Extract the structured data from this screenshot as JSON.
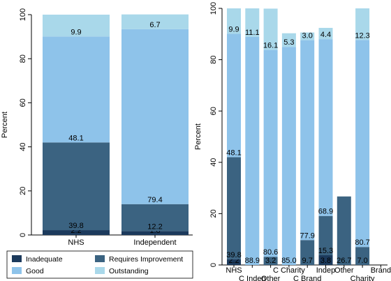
{
  "colors": {
    "inadequate": "#1c3a5c",
    "requires_improvement": "#3b6381",
    "good": "#8ec3ea",
    "outstanding": "#a9d8ea"
  },
  "legend": {
    "items": [
      {
        "key": "inadequate",
        "label": "Inadequate"
      },
      {
        "key": "requires_improvement",
        "label": "Requires Improvement"
      },
      {
        "key": "good",
        "label": "Good"
      },
      {
        "key": "outstanding",
        "label": "Outstanding"
      }
    ]
  },
  "chart_data": [
    {
      "type": "bar",
      "stacked": true,
      "ylabel": "Percent",
      "ylim": [
        0,
        100
      ],
      "yticks": [
        "0",
        "20",
        "40",
        "60",
        "80",
        "100"
      ],
      "categories": [
        "NHS",
        "Independent"
      ],
      "series": [
        {
          "name": "Inadequate",
          "key": "inadequate",
          "values": [
            2.2,
            1.8
          ],
          "labels": [
            "2.2",
            "1.8"
          ]
        },
        {
          "name": "Requires Improvement",
          "key": "requires_improvement",
          "values": [
            39.8,
            12.2
          ],
          "labels": [
            "39.8",
            "12.2"
          ]
        },
        {
          "name": "Good",
          "key": "good",
          "values": [
            48.1,
            79.4
          ],
          "labels": [
            "48.1",
            "79.4"
          ]
        },
        {
          "name": "Outstanding",
          "key": "outstanding",
          "values": [
            9.9,
            6.7
          ],
          "labels": [
            "9.9",
            "6.7"
          ]
        }
      ]
    },
    {
      "type": "bar",
      "stacked": true,
      "ylabel": "Percent",
      "ylim": [
        0,
        100
      ],
      "yticks": [
        "0",
        "20",
        "40",
        "60",
        "80",
        "100"
      ],
      "categories": [
        "NHS",
        "C Indep",
        "Other",
        "C Charity",
        "C Brand",
        "Indep",
        "Other",
        "Charity",
        "Brand"
      ],
      "category_rows": [
        0,
        1,
        1,
        0,
        1,
        0,
        0,
        1,
        0
      ],
      "series": [
        {
          "name": "Inadequate",
          "key": "inadequate",
          "values": [
            2.2,
            0,
            0,
            0,
            0,
            3.8,
            0,
            0,
            0
          ],
          "labels": [
            "2.2",
            "",
            "",
            "",
            "",
            "3.8",
            "",
            "",
            ""
          ]
        },
        {
          "name": "Requires Improvement",
          "key": "requires_improvement",
          "values": [
            39.8,
            0,
            3.2,
            0,
            9.7,
            15.3,
            26.7,
            7.0,
            0
          ],
          "labels": [
            "39.8",
            "",
            "3.2",
            "",
            "9.7",
            "15.3",
            "26.7",
            "7.0",
            ""
          ]
        },
        {
          "name": "Good",
          "key": "good",
          "values": [
            48.1,
            88.9,
            80.6,
            85.0,
            77.9,
            68.9,
            0,
            80.7,
            0
          ],
          "labels": [
            "48.1",
            "88.9",
            "80.6",
            "85.0",
            "77.9",
            "68.9",
            "",
            "80.7",
            ""
          ]
        },
        {
          "name": "Outstanding",
          "key": "outstanding",
          "values": [
            9.9,
            11.1,
            16.1,
            5.3,
            3.0,
            4.4,
            0,
            12.3,
            0
          ],
          "labels": [
            "9.9",
            "11.1",
            "16.1",
            "5.3",
            "3.0",
            "4.4",
            "",
            "12.3",
            ""
          ]
        }
      ]
    }
  ]
}
